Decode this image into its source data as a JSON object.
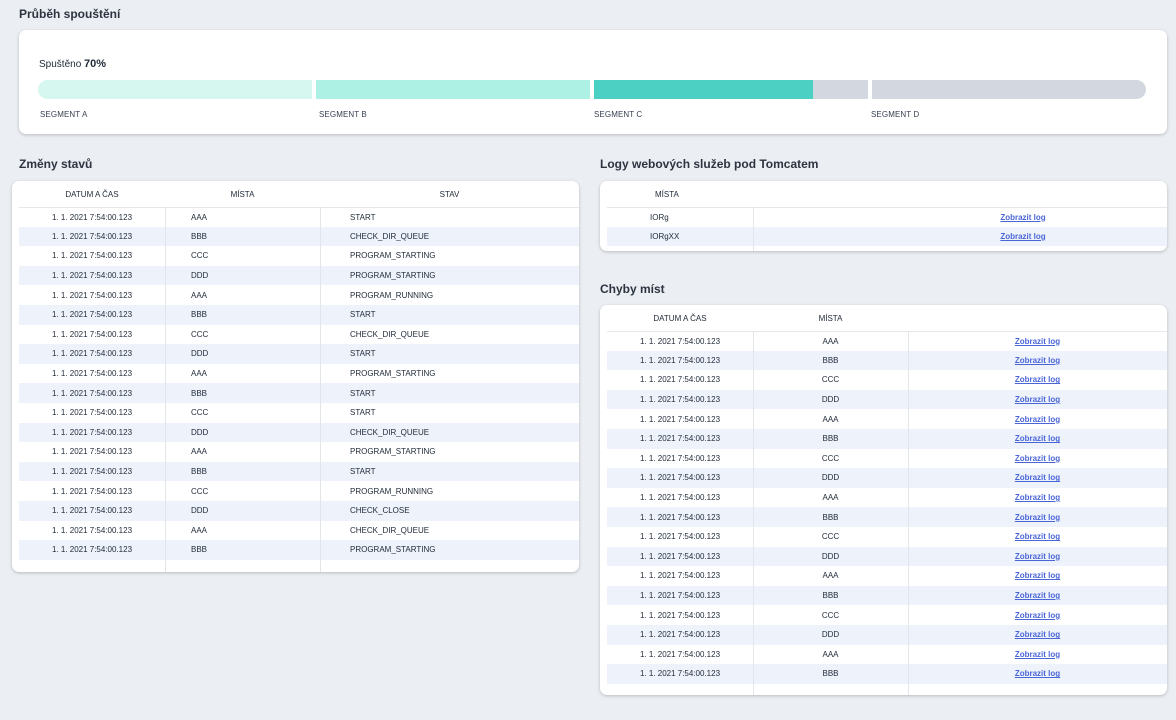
{
  "progress": {
    "title": "Průběh spouštění",
    "label": "Spuštěno",
    "percent_text": "70%",
    "percent": 70,
    "segments": [
      {
        "label": "SEGMENT A",
        "color": "#d6f7ef"
      },
      {
        "label": "SEGMENT B",
        "color": "#adf0e4"
      },
      {
        "label": "SEGMENT C",
        "color": "#4dd0c4"
      },
      {
        "label": "SEGMENT D",
        "color": "#d3d8e0"
      }
    ]
  },
  "state_changes": {
    "title": "Změny stavů",
    "columns": [
      "DATUM A ČAS",
      "MÍSTA",
      "STAV"
    ],
    "rows": [
      [
        "1. 1. 2021 7:54:00.123",
        "AAA",
        "START"
      ],
      [
        "1. 1. 2021 7:54:00.123",
        "BBB",
        "CHECK_DIR_QUEUE"
      ],
      [
        "1. 1. 2021 7:54:00.123",
        "CCC",
        "PROGRAM_STARTING"
      ],
      [
        "1. 1. 2021 7:54:00.123",
        "DDD",
        "PROGRAM_STARTING"
      ],
      [
        "1. 1. 2021 7:54:00.123",
        "AAA",
        "PROGRAM_RUNNING"
      ],
      [
        "1. 1. 2021 7:54:00.123",
        "BBB",
        "START"
      ],
      [
        "1. 1. 2021 7:54:00.123",
        "CCC",
        "CHECK_DIR_QUEUE"
      ],
      [
        "1. 1. 2021 7:54:00.123",
        "DDD",
        "START"
      ],
      [
        "1. 1. 2021 7:54:00.123",
        "AAA",
        "PROGRAM_STARTING"
      ],
      [
        "1. 1. 2021 7:54:00.123",
        "BBB",
        "START"
      ],
      [
        "1. 1. 2021 7:54:00.123",
        "CCC",
        "START"
      ],
      [
        "1. 1. 2021 7:54:00.123",
        "DDD",
        "CHECK_DIR_QUEUE"
      ],
      [
        "1. 1. 2021 7:54:00.123",
        "AAA",
        "PROGRAM_STARTING"
      ],
      [
        "1. 1. 2021 7:54:00.123",
        "BBB",
        "START"
      ],
      [
        "1. 1. 2021 7:54:00.123",
        "CCC",
        "PROGRAM_RUNNING"
      ],
      [
        "1. 1. 2021 7:54:00.123",
        "DDD",
        "CHECK_CLOSE"
      ],
      [
        "1. 1. 2021 7:54:00.123",
        "AAA",
        "CHECK_DIR_QUEUE"
      ],
      [
        "1. 1. 2021 7:54:00.123",
        "BBB",
        "PROGRAM_STARTING"
      ]
    ]
  },
  "tomcat_logs": {
    "title": "Logy webových služeb pod Tomcatem",
    "columns": [
      "MÍSTA",
      ""
    ],
    "link_label": "Zobrazit log",
    "rows": [
      "IORg",
      "IORgXX"
    ]
  },
  "place_errors": {
    "title": "Chyby míst",
    "columns": [
      "DATUM A ČAS",
      "MÍSTA",
      ""
    ],
    "link_label": "Zobrazit log",
    "rows": [
      [
        "1. 1. 2021 7:54:00.123",
        "AAA"
      ],
      [
        "1. 1. 2021 7:54:00.123",
        "BBB"
      ],
      [
        "1. 1. 2021 7:54:00.123",
        "CCC"
      ],
      [
        "1. 1. 2021 7:54:00.123",
        "DDD"
      ],
      [
        "1. 1. 2021 7:54:00.123",
        "AAA"
      ],
      [
        "1. 1. 2021 7:54:00.123",
        "BBB"
      ],
      [
        "1. 1. 2021 7:54:00.123",
        "CCC"
      ],
      [
        "1. 1. 2021 7:54:00.123",
        "DDD"
      ],
      [
        "1. 1. 2021 7:54:00.123",
        "AAA"
      ],
      [
        "1. 1. 2021 7:54:00.123",
        "BBB"
      ],
      [
        "1. 1. 2021 7:54:00.123",
        "CCC"
      ],
      [
        "1. 1. 2021 7:54:00.123",
        "DDD"
      ],
      [
        "1. 1. 2021 7:54:00.123",
        "AAA"
      ],
      [
        "1. 1. 2021 7:54:00.123",
        "BBB"
      ],
      [
        "1. 1. 2021 7:54:00.123",
        "CCC"
      ],
      [
        "1. 1. 2021 7:54:00.123",
        "DDD"
      ],
      [
        "1. 1. 2021 7:54:00.123",
        "AAA"
      ],
      [
        "1. 1. 2021 7:54:00.123",
        "BBB"
      ]
    ]
  }
}
